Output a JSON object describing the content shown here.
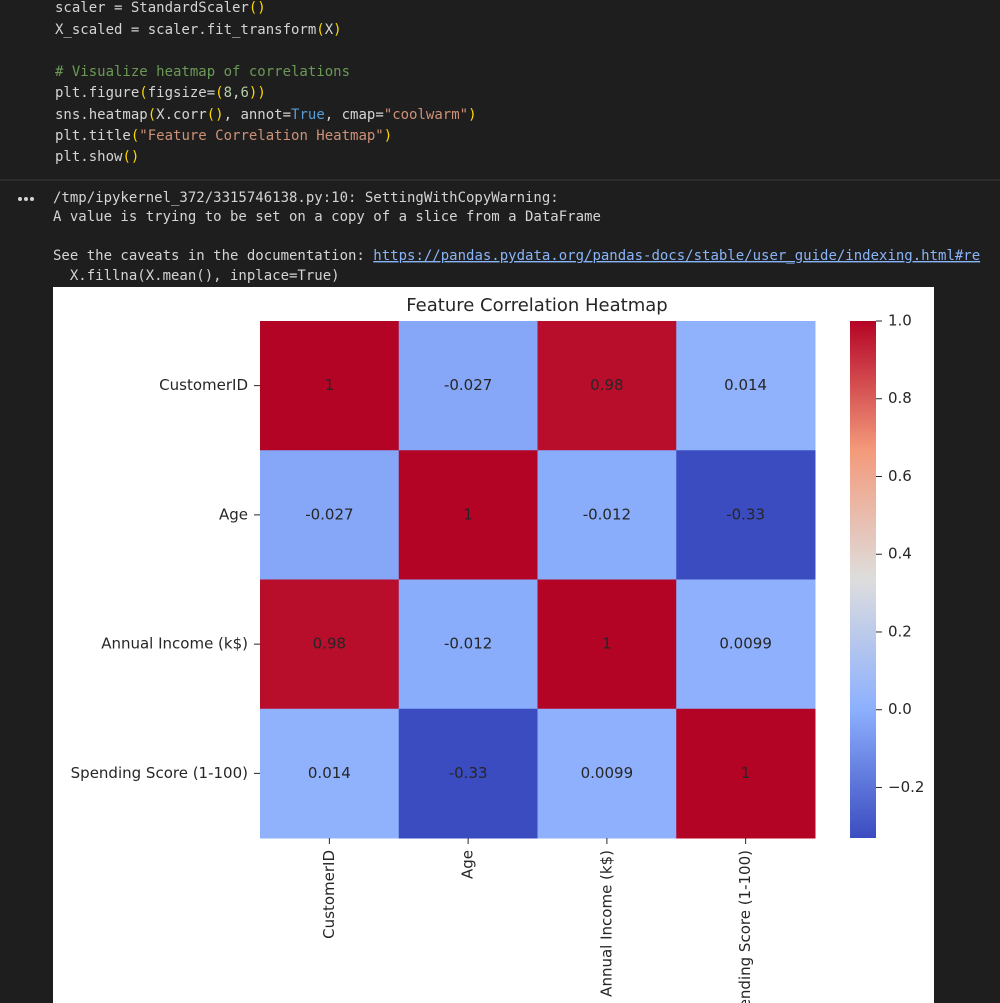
{
  "code": {
    "lines": [
      [
        "scaler = StandardScaler",
        "()"
      ],
      [
        "X_scaled = scaler.fit_transform",
        "(",
        "X",
        ")"
      ],
      [
        "# Visualize heatmap of correlations"
      ],
      [
        "plt.figure",
        "(",
        "figsize=",
        "(",
        "8",
        ",",
        "6",
        ")",
        ")"
      ],
      [
        "sns.heatmap",
        "(",
        "X.corr",
        "()",
        ", annot=",
        "True",
        ", cmap=",
        "\"coolwarm\"",
        ")"
      ],
      [
        "plt.title",
        "(",
        "\"Feature Correlation Heatmap\"",
        ")"
      ],
      [
        "plt.show",
        "()"
      ]
    ]
  },
  "output": {
    "warning": "/tmp/ipykernel_372/3315746138.py:10: SettingWithCopyWarning:",
    "message": "A value is trying to be set on a copy of a slice from a DataFrame",
    "caveat": "See the caveats in the documentation: ",
    "link": "https://pandas.pydata.org/pandas-docs/stable/user_guide/indexing.html#re",
    "source": "  X.fillna(X.mean(), inplace=True)"
  },
  "chart_data": {
    "type": "heatmap",
    "title": "Feature Correlation Heatmap",
    "categories": [
      "CustomerID",
      "Age",
      "Annual Income (k$)",
      "Spending Score (1-100)"
    ],
    "values": [
      [
        1,
        -0.027,
        0.98,
        0.014
      ],
      [
        -0.027,
        1,
        -0.012,
        -0.33
      ],
      [
        0.98,
        -0.012,
        1,
        0.0099
      ],
      [
        0.014,
        -0.33,
        0.0099,
        1
      ]
    ],
    "cmap": "coolwarm",
    "clim": [
      -0.33,
      1.0
    ],
    "cticks": [
      {
        "value": 1,
        "label": "1.0"
      },
      0.8,
      0.6,
      0.4,
      0.2,
      {
        "value": 0,
        "label": "0.0"
      },
      {
        "value": -0.2,
        "label": "−0.2"
      }
    ]
  }
}
